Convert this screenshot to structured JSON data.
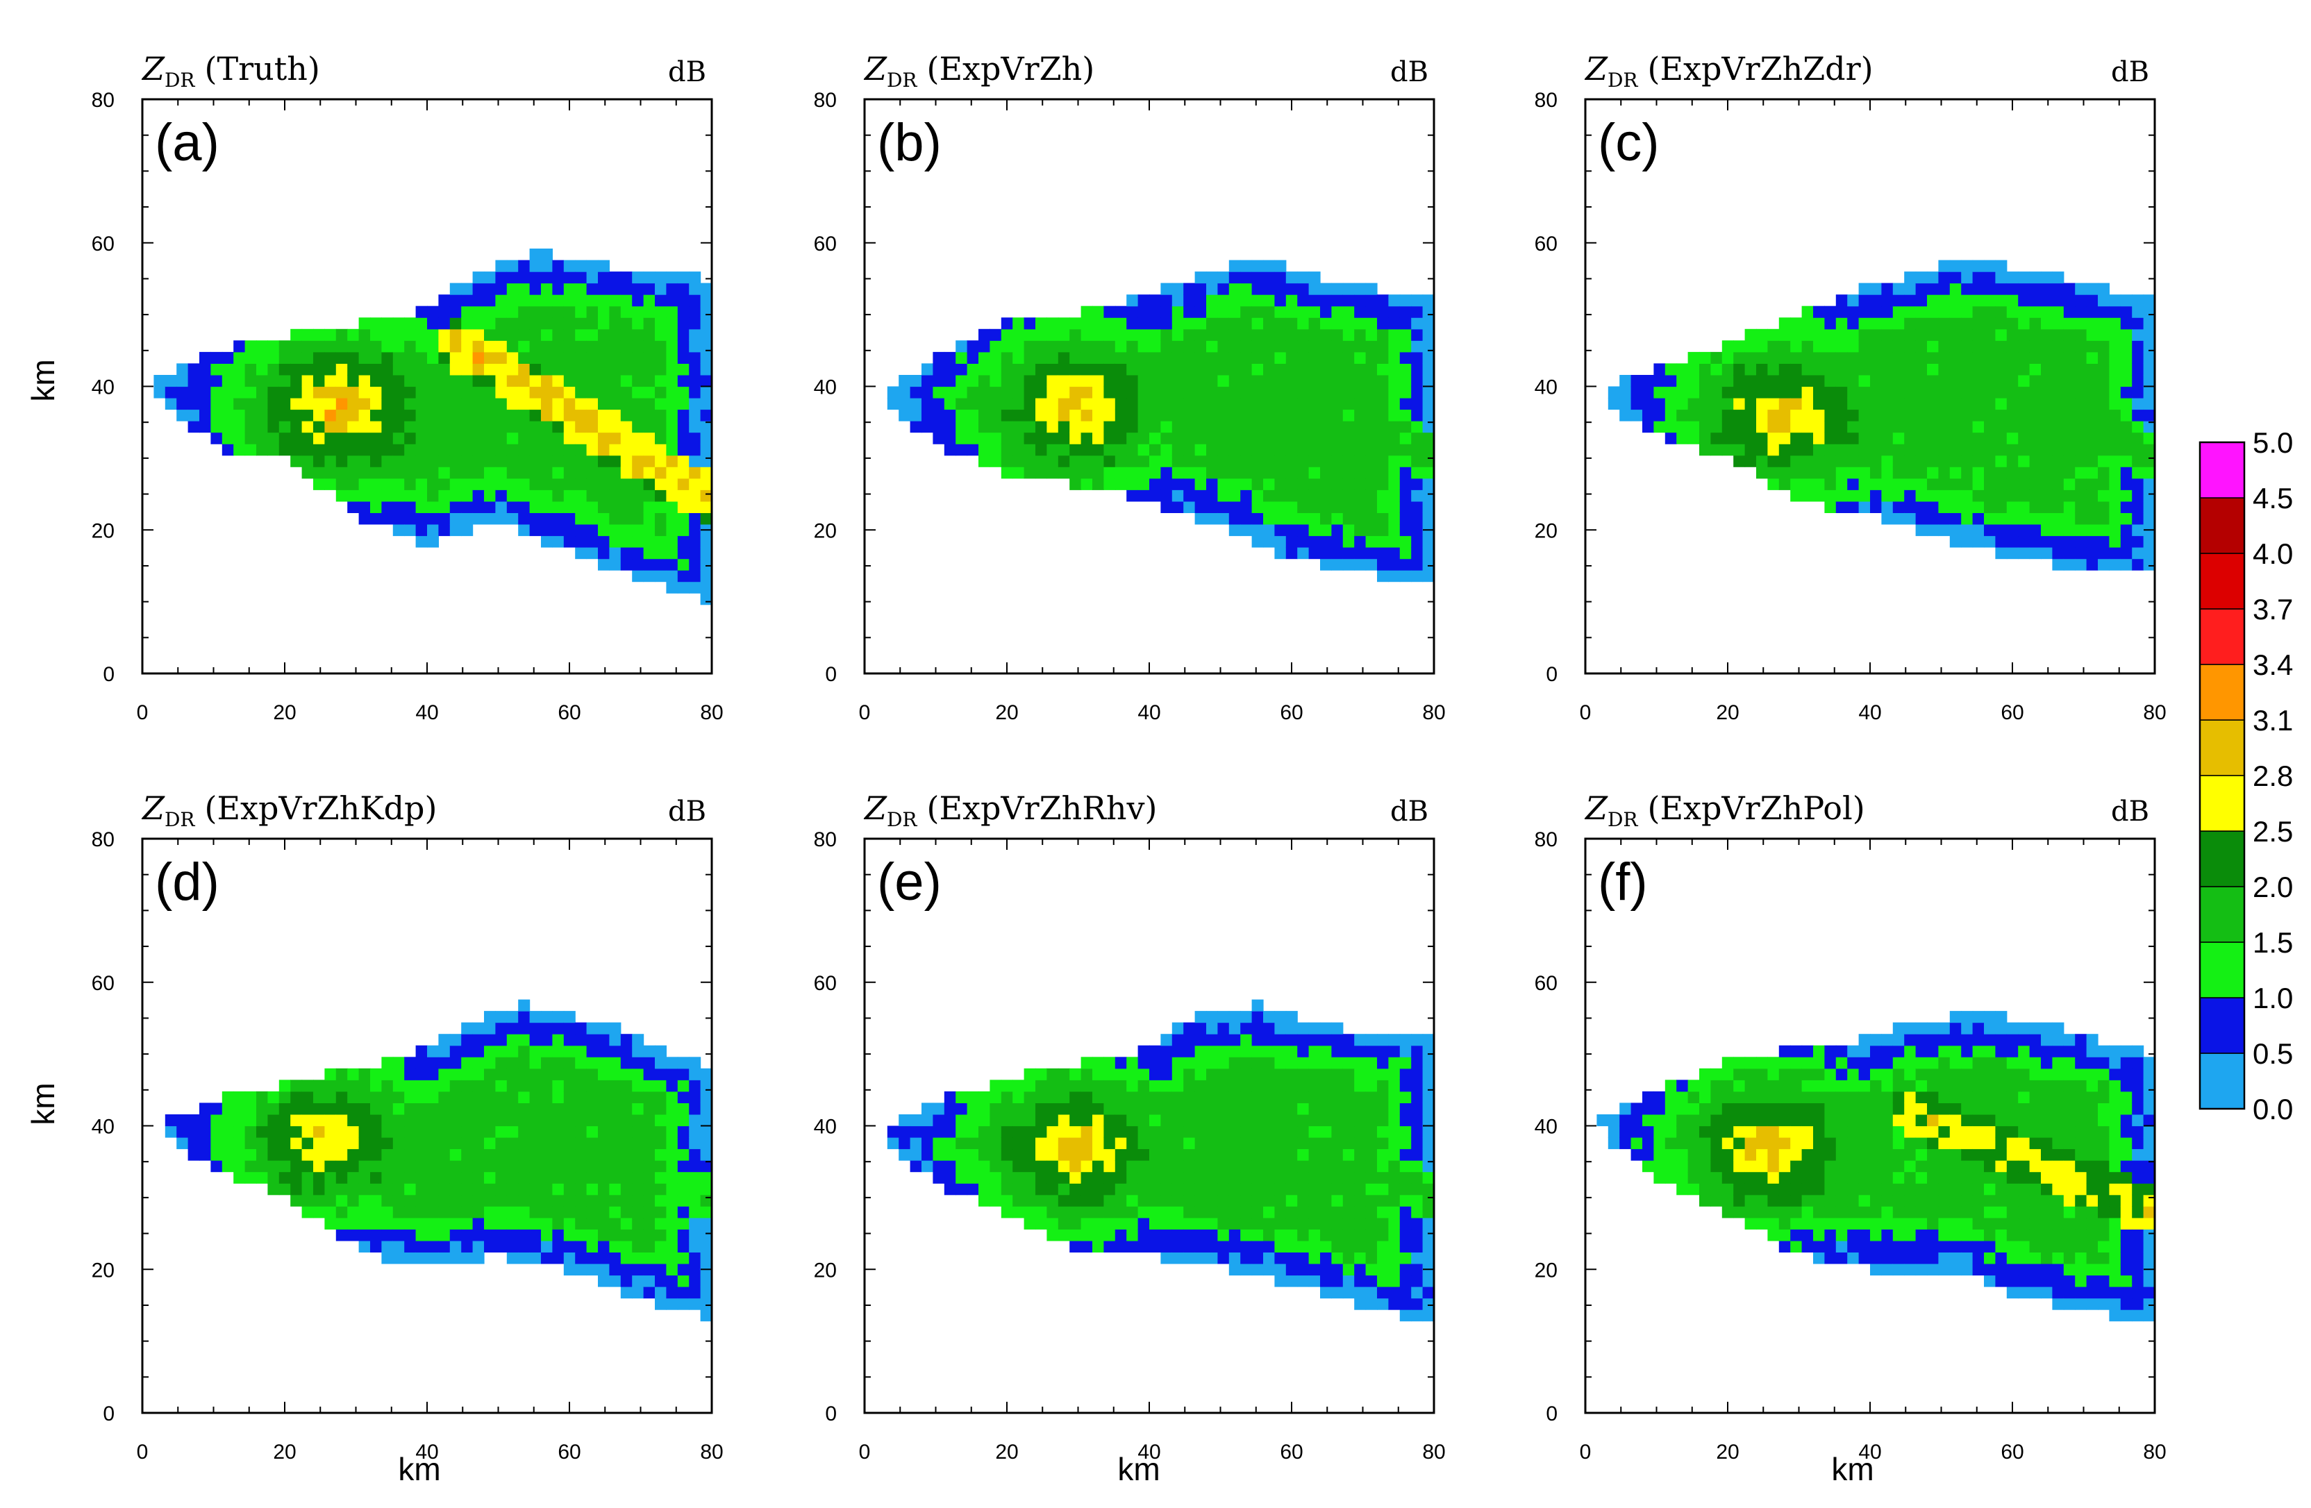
{
  "figure": {
    "xlabel": "km",
    "ylabel": "km",
    "units": "dB",
    "variable_main": "Z",
    "variable_sub": "DR"
  },
  "colorbar": {
    "levels": [
      "0.0",
      "0.5",
      "1.0",
      "1.5",
      "2.0",
      "2.5",
      "2.8",
      "3.1",
      "3.4",
      "3.7",
      "4.0",
      "4.5",
      "5.0"
    ],
    "colors": [
      "#1ea6f0",
      "#0a14e6",
      "#14f014",
      "#14be14",
      "#0a8c0a",
      "#ffff00",
      "#e6be00",
      "#ff9600",
      "#ff1e1e",
      "#dc0000",
      "#b40000",
      "#ff14ff"
    ]
  },
  "chart_data": [
    {
      "type": "heatmap",
      "label": "(a)",
      "title": "(Truth)",
      "xlim": [
        0,
        80
      ],
      "ylim": [
        0,
        80
      ],
      "xticks": [
        "0",
        "20",
        "40",
        "60",
        "80"
      ],
      "yticks": [
        "0",
        "20",
        "40",
        "60",
        "80"
      ],
      "field": {
        "core_zdr": 3.2,
        "core": [
          28,
          37
        ],
        "outline": [
          [
            1,
            41
          ],
          [
            10,
            45
          ],
          [
            25,
            48
          ],
          [
            38,
            50
          ],
          [
            48,
            56
          ],
          [
            55,
            59
          ],
          [
            64,
            57
          ],
          [
            80,
            55
          ],
          [
            80,
            10
          ],
          [
            70,
            13
          ],
          [
            60,
            17
          ],
          [
            50,
            21
          ],
          [
            40,
            18
          ],
          [
            30,
            22
          ],
          [
            20,
            30
          ],
          [
            12,
            31
          ],
          [
            3,
            37
          ]
        ],
        "band": {
          "start": [
            44,
            46
          ],
          "end": [
            80,
            24
          ],
          "zdr": 2.9
        }
      }
    },
    {
      "type": "heatmap",
      "label": "(b)",
      "title": "(ExpVrZh)",
      "xlim": [
        0,
        80
      ],
      "ylim": [
        0,
        80
      ],
      "xticks": [
        "0",
        "20",
        "40",
        "60",
        "80"
      ],
      "yticks": [
        "0",
        "20",
        "40",
        "60",
        "80"
      ],
      "field": {
        "core_zdr": 3.1,
        "core": [
          30,
          37
        ],
        "outline": [
          [
            3,
            40
          ],
          [
            10,
            44
          ],
          [
            20,
            49
          ],
          [
            35,
            51
          ],
          [
            48,
            56
          ],
          [
            55,
            58
          ],
          [
            65,
            55
          ],
          [
            80,
            52
          ],
          [
            80,
            12
          ],
          [
            70,
            14
          ],
          [
            60,
            16
          ],
          [
            52,
            20
          ],
          [
            40,
            24
          ],
          [
            32,
            26
          ],
          [
            20,
            28
          ],
          [
            10,
            32
          ],
          [
            4,
            37
          ]
        ],
        "band": {
          "start": [
            46,
            44
          ],
          "end": [
            80,
            30
          ],
          "zdr": 1.8
        }
      }
    },
    {
      "type": "heatmap",
      "label": "(c)",
      "title": "(ExpVrZhZdr)",
      "xlim": [
        0,
        80
      ],
      "ylim": [
        0,
        80
      ],
      "xticks": [
        "0",
        "20",
        "40",
        "60",
        "80"
      ],
      "yticks": [
        "0",
        "20",
        "40",
        "60",
        "80"
      ],
      "field": {
        "core_zdr": 3.1,
        "core": [
          28,
          36
        ],
        "outline": [
          [
            3,
            40
          ],
          [
            12,
            43
          ],
          [
            25,
            48
          ],
          [
            40,
            54
          ],
          [
            50,
            57
          ],
          [
            58,
            57
          ],
          [
            68,
            55
          ],
          [
            80,
            52
          ],
          [
            80,
            14
          ],
          [
            70,
            14
          ],
          [
            62,
            16
          ],
          [
            52,
            18
          ],
          [
            40,
            22
          ],
          [
            30,
            24
          ],
          [
            20,
            30
          ],
          [
            10,
            33
          ],
          [
            4,
            37
          ]
        ],
        "band": {
          "start": [
            50,
            44
          ],
          "end": [
            80,
            30
          ],
          "zdr": 1.8
        }
      }
    },
    {
      "type": "heatmap",
      "label": "(d)",
      "title": "(ExpVrZhKdp)",
      "xlim": [
        0,
        80
      ],
      "ylim": [
        0,
        80
      ],
      "xticks": [
        "0",
        "20",
        "40",
        "60",
        "80"
      ],
      "yticks": [
        "0",
        "20",
        "40",
        "60",
        "80"
      ],
      "field": {
        "core_zdr": 3.0,
        "core": [
          26,
          38
        ],
        "outline": [
          [
            3,
            41
          ],
          [
            12,
            44
          ],
          [
            25,
            47
          ],
          [
            38,
            50
          ],
          [
            45,
            54
          ],
          [
            54,
            57
          ],
          [
            66,
            54
          ],
          [
            80,
            48
          ],
          [
            80,
            13
          ],
          [
            70,
            16
          ],
          [
            60,
            20
          ],
          [
            50,
            22
          ],
          [
            40,
            20
          ],
          [
            32,
            22
          ],
          [
            20,
            30
          ],
          [
            10,
            34
          ],
          [
            4,
            38
          ]
        ],
        "band": {
          "start": [
            46,
            42
          ],
          "end": [
            80,
            30
          ],
          "zdr": 1.4
        }
      }
    },
    {
      "type": "heatmap",
      "label": "(e)",
      "title": "(ExpVrZhRhv)",
      "xlim": [
        0,
        80
      ],
      "ylim": [
        0,
        80
      ],
      "xticks": [
        "0",
        "20",
        "40",
        "60",
        "80"
      ],
      "yticks": [
        "0",
        "20",
        "40",
        "60",
        "80"
      ],
      "field": {
        "core_zdr": 3.1,
        "core": [
          30,
          37
        ],
        "outline": [
          [
            3,
            40
          ],
          [
            12,
            44
          ],
          [
            25,
            48
          ],
          [
            38,
            50
          ],
          [
            46,
            55
          ],
          [
            55,
            57
          ],
          [
            65,
            54
          ],
          [
            80,
            52
          ],
          [
            80,
            12
          ],
          [
            70,
            15
          ],
          [
            60,
            18
          ],
          [
            52,
            20
          ],
          [
            40,
            22
          ],
          [
            32,
            22
          ],
          [
            20,
            28
          ],
          [
            10,
            32
          ],
          [
            4,
            37
          ]
        ],
        "band": {
          "start": [
            46,
            44
          ],
          "end": [
            80,
            30
          ],
          "zdr": 1.8
        }
      }
    },
    {
      "type": "heatmap",
      "label": "(f)",
      "title": "(ExpVrZhPol)",
      "xlim": [
        0,
        80
      ],
      "ylim": [
        0,
        80
      ],
      "xticks": [
        "0",
        "20",
        "40",
        "60",
        "80"
      ],
      "yticks": [
        "0",
        "20",
        "40",
        "60",
        "80"
      ],
      "field": {
        "core_zdr": 3.1,
        "core": [
          26,
          37
        ],
        "outline": [
          [
            2,
            41
          ],
          [
            10,
            45
          ],
          [
            22,
            50
          ],
          [
            36,
            51
          ],
          [
            45,
            54
          ],
          [
            55,
            56
          ],
          [
            65,
            54
          ],
          [
            80,
            50
          ],
          [
            80,
            12
          ],
          [
            72,
            14
          ],
          [
            62,
            16
          ],
          [
            52,
            20
          ],
          [
            40,
            20
          ],
          [
            30,
            22
          ],
          [
            20,
            28
          ],
          [
            10,
            33
          ],
          [
            3,
            38
          ]
        ],
        "band": {
          "start": [
            46,
            42
          ],
          "end": [
            80,
            28
          ],
          "zdr": 2.7
        }
      }
    }
  ]
}
